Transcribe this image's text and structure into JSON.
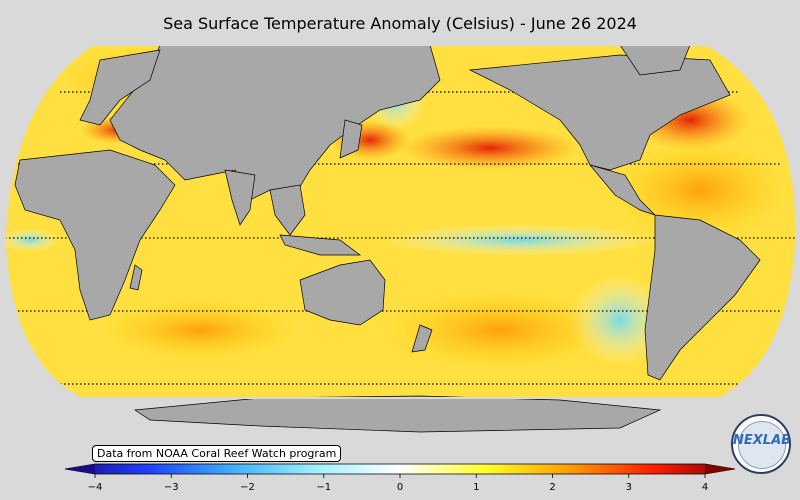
{
  "map": {
    "title": "Sea Surface Temperature Anomaly (Celsius) - June 26 2024",
    "credit": "Data from NOAA Coral Reef Watch program",
    "projection": "robinson",
    "land_color": "#a8a8a8",
    "ocean_base_color": "#ffe040",
    "parallels_dotted": true
  },
  "colorbar": {
    "ticks": [
      "−4",
      "−3",
      "−2",
      "−1",
      "0",
      "1",
      "2",
      "3",
      "4"
    ],
    "min": -4,
    "max": 4,
    "colors": [
      "#1a0a8a",
      "#2040ff",
      "#40b0ff",
      "#a0f0ff",
      "#ffffff",
      "#ffff30",
      "#ffa000",
      "#ff2000",
      "#800000"
    ]
  },
  "logo": {
    "label": "NEXLAB"
  }
}
